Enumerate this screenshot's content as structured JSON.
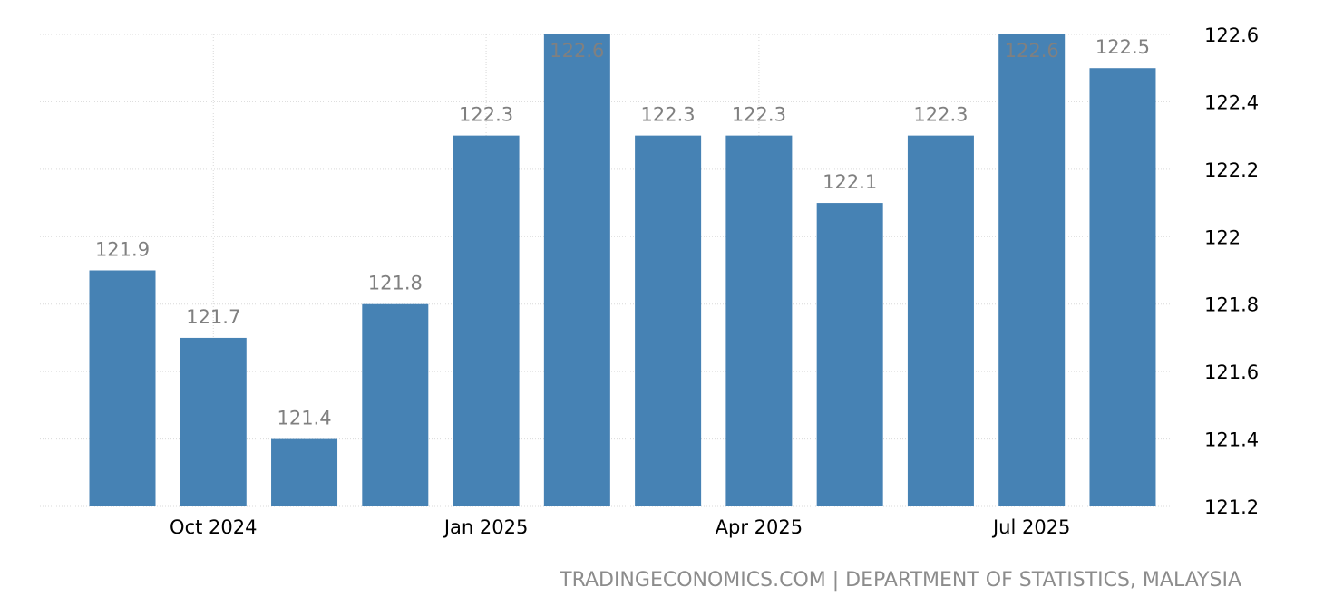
{
  "chart_data": {
    "type": "bar",
    "categories": [
      "Sep 2024",
      "Oct 2024",
      "Nov 2024",
      "Dec 2024",
      "Jan 2025",
      "Feb 2025",
      "Mar 2025",
      "Apr 2025",
      "May 2025",
      "Jun 2025",
      "Jul 2025",
      "Aug 2025"
    ],
    "values": [
      121.9,
      121.7,
      121.4,
      121.8,
      122.3,
      122.6,
      122.3,
      122.3,
      122.1,
      122.3,
      122.6,
      122.5
    ],
    "data_labels": [
      "121.9",
      "121.7",
      "121.4",
      "121.8",
      "122.3",
      "122.6",
      "122.3",
      "122.3",
      "122.1",
      "122.3",
      "122.6",
      "122.5"
    ],
    "x_tick_labels": [
      {
        "category": "Oct 2024",
        "label": "Oct 2024"
      },
      {
        "category": "Jan 2025",
        "label": "Jan 2025"
      },
      {
        "category": "Apr 2025",
        "label": "Apr 2025"
      },
      {
        "category": "Jul 2025",
        "label": "Jul 2025"
      }
    ],
    "y_ticks": [
      121.2,
      121.4,
      121.6,
      121.8,
      122,
      122.2,
      122.4,
      122.6
    ],
    "y_tick_labels": [
      "121.2",
      "121.4",
      "121.6",
      "121.8",
      "122",
      "122.2",
      "122.4",
      "122.6"
    ],
    "ylim": [
      121.2,
      122.6
    ],
    "y_axis_side": "right",
    "grid": true,
    "bar_color": "#4682b4",
    "label_color": "#808080",
    "title": "",
    "xlabel": "",
    "ylabel": ""
  },
  "source_text": "TRADINGECONOMICS.COM | DEPARTMENT OF STATISTICS, MALAYSIA"
}
